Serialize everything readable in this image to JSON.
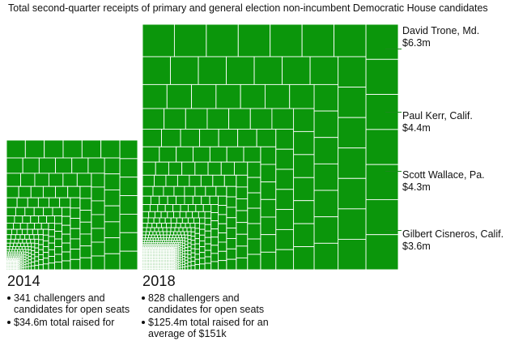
{
  "chart_data": {
    "type": "treemap",
    "title": "Total second-quarter receipts of primary and general election non-incumbent Democratic House candidates",
    "colors": {
      "fill": "#0b960b",
      "cell_border": "#ffffff"
    },
    "panels": [
      {
        "year": "2014",
        "stats": [
          "341 challengers and candidates for open seats",
          "$34.6m total raised for"
        ]
      },
      {
        "year": "2018",
        "stats": [
          "828 challengers and candidates for open seats",
          "$125.4m total raised for an average of $151k"
        ],
        "labeled_candidates": [
          {
            "name": "David Trone, Md.",
            "value": "$6.3m"
          },
          {
            "name": "Paul Kerr, Calif.",
            "value": "$4.4m"
          },
          {
            "name": "Scott Wallace, Pa.",
            "value": "$4.3m"
          },
          {
            "name": "Gilbert Cisneros, Calif.",
            "value": "$3.6m"
          }
        ]
      }
    ]
  }
}
